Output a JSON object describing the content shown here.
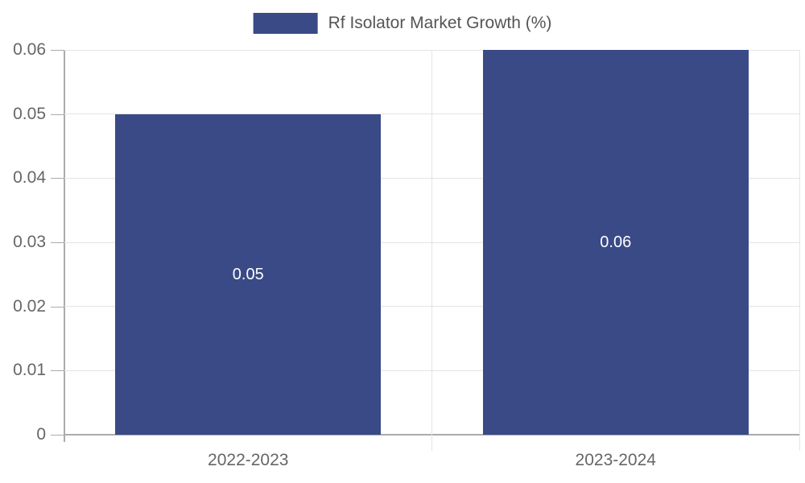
{
  "chart_data": {
    "type": "bar",
    "title": "",
    "legend": {
      "label": "Rf Isolator Market Growth (%)",
      "position": "top-center"
    },
    "categories": [
      "2022-2023",
      "2023-2024"
    ],
    "series": [
      {
        "name": "Rf Isolator Market Growth (%)",
        "values": [
          0.05,
          0.06
        ],
        "labels": [
          "0.05",
          "0.06"
        ]
      }
    ],
    "xlabel": "",
    "ylabel": "",
    "ylim": [
      0,
      0.06
    ],
    "yticks": [
      0,
      0.01,
      0.02,
      0.03,
      0.04,
      0.05,
      0.06
    ],
    "ytick_labels": [
      "0",
      "0.01",
      "0.02",
      "0.03",
      "0.04",
      "0.05",
      "0.06"
    ],
    "grid": true,
    "bar_labels_inside": true,
    "colors": {
      "bar": "#394A86",
      "bar_label_text": "#ffffff",
      "legend_text": "#555555",
      "tick_text": "#666666",
      "axis_line": "#ababab",
      "grid_line": "#e4e4e4",
      "background": "#ffffff"
    }
  }
}
